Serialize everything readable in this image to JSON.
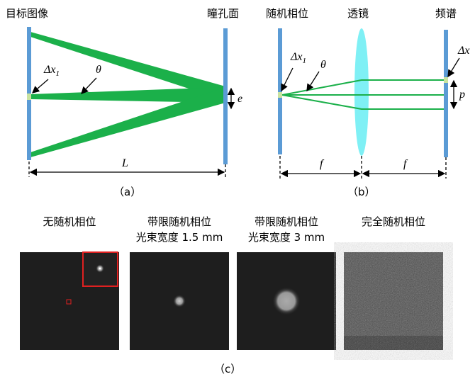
{
  "panel_a": {
    "left_label": "目标图像",
    "right_label": "瞳孔面",
    "delta": {
      "symbol": "Δx",
      "subscript": "1"
    },
    "theta": "θ",
    "e": "e",
    "L": "L",
    "caption": "（a）"
  },
  "panel_b": {
    "left_label": "随机相位",
    "lens_label": "透镜",
    "right_label": "频谱",
    "delta": {
      "symbol": "Δx",
      "subscript": "1"
    },
    "theta": "θ",
    "delta_x": "Δx",
    "p": "p",
    "f_left": "f",
    "f_right": "f",
    "caption": "（b）"
  },
  "panel_c": {
    "images": [
      {
        "title": "无随机相位"
      },
      {
        "title": "带限随机相位",
        "subtitle": "光束宽度 1.5 mm"
      },
      {
        "title": "带限随机相位",
        "subtitle": "光束宽度 3 mm"
      },
      {
        "title": "完全随机相位"
      }
    ],
    "caption": "（c）"
  }
}
